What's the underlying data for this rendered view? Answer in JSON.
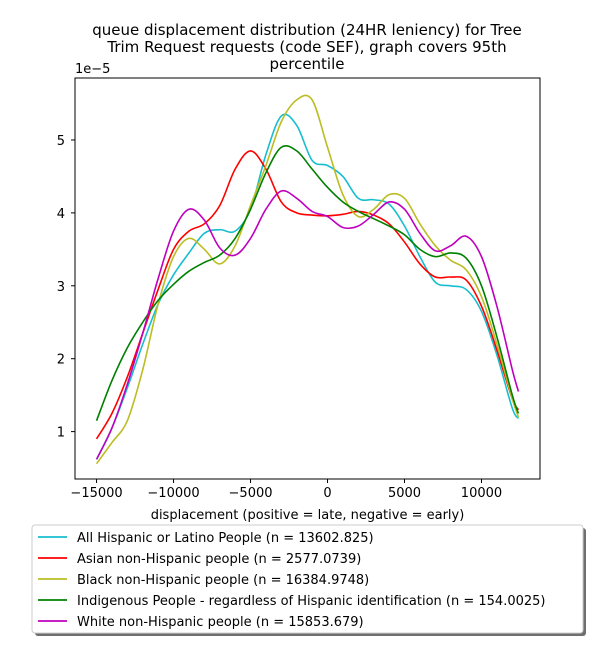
{
  "chart_data": {
    "type": "line",
    "title_lines": [
      "queue displacement distribution (24HR leniency) for Tree",
      "Trim Request  requests (code SEF), graph covers 95th",
      "percentile"
    ],
    "xlabel": "displacement (positive = late, negative = early)",
    "ylabel": "",
    "y_offset_label": "1e−5",
    "xlim": [
      -16400,
      13800
    ],
    "ylim": [
      0.35,
      5.85
    ],
    "xticks": [
      -15000,
      -10000,
      -5000,
      0,
      5000,
      10000
    ],
    "xtick_labels": [
      "−15000",
      "−10000",
      "−5000",
      "0",
      "5000",
      "10000"
    ],
    "yticks": [
      1,
      2,
      3,
      4,
      5
    ],
    "ytick_labels": [
      "1",
      "2",
      "3",
      "4",
      "5"
    ],
    "grid": false,
    "legend_position": "below",
    "series": [
      {
        "name": "All Hispanic or Latino People (n = 13602.825)",
        "color": "#17becf",
        "points": [
          [
            -15000,
            0.62
          ],
          [
            -14000,
            1.05
          ],
          [
            -13000,
            1.6
          ],
          [
            -12000,
            2.2
          ],
          [
            -11000,
            2.75
          ],
          [
            -10000,
            3.15
          ],
          [
            -9000,
            3.45
          ],
          [
            -8000,
            3.72
          ],
          [
            -7000,
            3.77
          ],
          [
            -6000,
            3.75
          ],
          [
            -5000,
            4.05
          ],
          [
            -4000,
            4.8
          ],
          [
            -3000,
            5.33
          ],
          [
            -2000,
            5.2
          ],
          [
            -1000,
            4.72
          ],
          [
            0,
            4.65
          ],
          [
            1000,
            4.5
          ],
          [
            2000,
            4.2
          ],
          [
            3000,
            4.18
          ],
          [
            4000,
            4.12
          ],
          [
            5000,
            3.82
          ],
          [
            6000,
            3.4
          ],
          [
            7000,
            3.05
          ],
          [
            8000,
            3.0
          ],
          [
            9000,
            2.95
          ],
          [
            10000,
            2.65
          ],
          [
            11000,
            2.05
          ],
          [
            12000,
            1.32
          ],
          [
            12400,
            1.18
          ]
        ]
      },
      {
        "name": "Asian non-Hispanic people (n = 2577.0739)",
        "color": "#ff0000",
        "points": [
          [
            -15000,
            0.9
          ],
          [
            -14000,
            1.25
          ],
          [
            -13000,
            1.75
          ],
          [
            -12000,
            2.35
          ],
          [
            -11000,
            2.95
          ],
          [
            -10000,
            3.5
          ],
          [
            -9000,
            3.75
          ],
          [
            -8000,
            3.85
          ],
          [
            -7000,
            4.1
          ],
          [
            -6000,
            4.6
          ],
          [
            -5000,
            4.85
          ],
          [
            -4000,
            4.6
          ],
          [
            -3000,
            4.15
          ],
          [
            -2000,
            4.0
          ],
          [
            -1000,
            3.97
          ],
          [
            0,
            3.96
          ],
          [
            1000,
            3.98
          ],
          [
            2000,
            4.02
          ],
          [
            3000,
            3.97
          ],
          [
            4000,
            3.85
          ],
          [
            5000,
            3.6
          ],
          [
            6000,
            3.3
          ],
          [
            7000,
            3.12
          ],
          [
            8000,
            3.12
          ],
          [
            9000,
            3.08
          ],
          [
            10000,
            2.72
          ],
          [
            11000,
            2.12
          ],
          [
            12000,
            1.45
          ],
          [
            12400,
            1.3
          ]
        ]
      },
      {
        "name": "Black non-Hispanic people (n = 16384.9748)",
        "color": "#bcbd22",
        "points": [
          [
            -15000,
            0.56
          ],
          [
            -14000,
            0.85
          ],
          [
            -13000,
            1.15
          ],
          [
            -12000,
            1.85
          ],
          [
            -11000,
            2.75
          ],
          [
            -10000,
            3.4
          ],
          [
            -9000,
            3.65
          ],
          [
            -8000,
            3.5
          ],
          [
            -7000,
            3.3
          ],
          [
            -6000,
            3.55
          ],
          [
            -5000,
            4.1
          ],
          [
            -4000,
            4.65
          ],
          [
            -3000,
            5.25
          ],
          [
            -2000,
            5.55
          ],
          [
            -1000,
            5.55
          ],
          [
            0,
            4.9
          ],
          [
            1000,
            4.25
          ],
          [
            2000,
            3.95
          ],
          [
            3000,
            4.05
          ],
          [
            4000,
            4.25
          ],
          [
            5000,
            4.2
          ],
          [
            6000,
            3.85
          ],
          [
            7000,
            3.55
          ],
          [
            8000,
            3.35
          ],
          [
            9000,
            3.22
          ],
          [
            10000,
            2.85
          ],
          [
            11000,
            2.2
          ],
          [
            12000,
            1.45
          ],
          [
            12400,
            1.2
          ]
        ]
      },
      {
        "name": "Indigenous People - regardless of Hispanic identification (n = 154.0025)",
        "color": "#008000",
        "points": [
          [
            -15000,
            1.15
          ],
          [
            -14000,
            1.7
          ],
          [
            -13000,
            2.15
          ],
          [
            -12000,
            2.5
          ],
          [
            -11000,
            2.8
          ],
          [
            -10000,
            3.02
          ],
          [
            -9000,
            3.2
          ],
          [
            -8000,
            3.32
          ],
          [
            -7000,
            3.42
          ],
          [
            -6000,
            3.65
          ],
          [
            -5000,
            4.05
          ],
          [
            -4000,
            4.55
          ],
          [
            -3000,
            4.9
          ],
          [
            -2000,
            4.85
          ],
          [
            -1000,
            4.6
          ],
          [
            0,
            4.35
          ],
          [
            1000,
            4.15
          ],
          [
            2000,
            4.02
          ],
          [
            3000,
            3.92
          ],
          [
            4000,
            3.82
          ],
          [
            5000,
            3.7
          ],
          [
            6000,
            3.5
          ],
          [
            7000,
            3.4
          ],
          [
            8000,
            3.45
          ],
          [
            9000,
            3.38
          ],
          [
            10000,
            3.0
          ],
          [
            11000,
            2.3
          ],
          [
            12000,
            1.5
          ],
          [
            12400,
            1.25
          ]
        ]
      },
      {
        "name": "White non-Hispanic people (n = 15853.679)",
        "color": "#bf00bf",
        "points": [
          [
            -15000,
            0.62
          ],
          [
            -14000,
            1.05
          ],
          [
            -13000,
            1.65
          ],
          [
            -12000,
            2.35
          ],
          [
            -11000,
            3.1
          ],
          [
            -10000,
            3.75
          ],
          [
            -9000,
            4.05
          ],
          [
            -8000,
            3.9
          ],
          [
            -7000,
            3.52
          ],
          [
            -6000,
            3.42
          ],
          [
            -5000,
            3.65
          ],
          [
            -4000,
            4.05
          ],
          [
            -3000,
            4.3
          ],
          [
            -2000,
            4.2
          ],
          [
            -1000,
            4.02
          ],
          [
            0,
            3.95
          ],
          [
            1000,
            3.8
          ],
          [
            2000,
            3.82
          ],
          [
            3000,
            3.98
          ],
          [
            4000,
            4.15
          ],
          [
            5000,
            4.05
          ],
          [
            6000,
            3.72
          ],
          [
            7000,
            3.48
          ],
          [
            8000,
            3.55
          ],
          [
            9000,
            3.68
          ],
          [
            10000,
            3.4
          ],
          [
            11000,
            2.72
          ],
          [
            12000,
            1.85
          ],
          [
            12400,
            1.55
          ]
        ]
      }
    ]
  }
}
